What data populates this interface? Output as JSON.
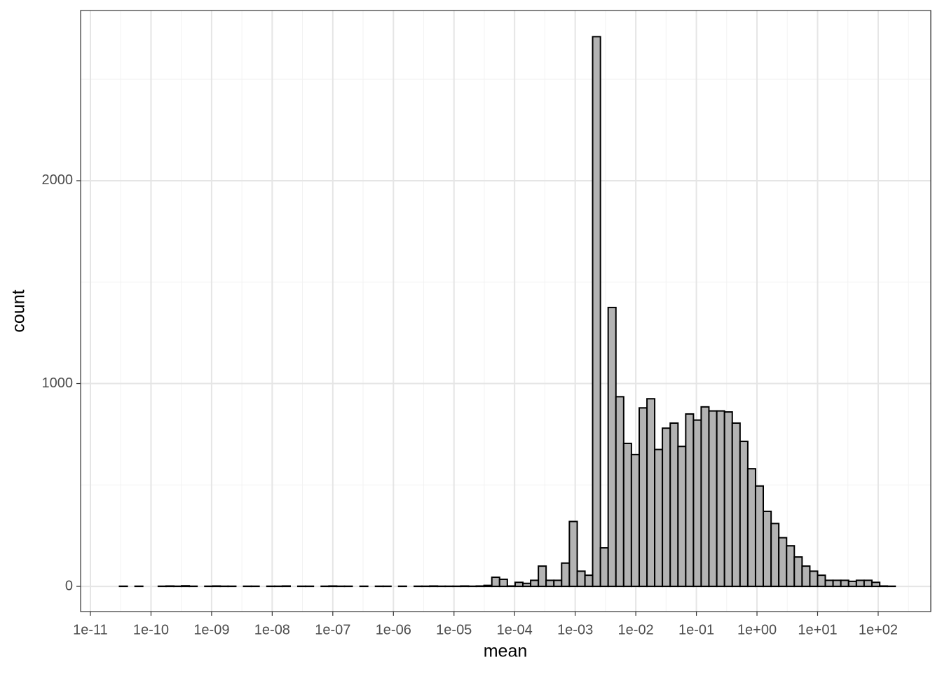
{
  "chart_data": {
    "type": "histogram",
    "x_label": "mean",
    "y_label": "count",
    "xlog": true,
    "grid": true,
    "fill": "#b3b3b3",
    "edge_color": "#000000",
    "bins": [
      3.02e-11,
      4.06e-11,
      5.45e-11,
      7.31e-11,
      9.82e-11,
      1.32e-10,
      1.77e-10,
      2.38e-10,
      3.19e-10,
      4.29e-10,
      5.75e-10,
      7.73e-10,
      1.04e-09,
      1.39e-09,
      1.87e-09,
      2.51e-09,
      3.37e-09,
      4.53e-09,
      6.08e-09,
      8.17e-09,
      1.1e-08,
      1.47e-08,
      1.98e-08,
      2.65e-08,
      3.56e-08,
      4.79e-08,
      6.43e-08,
      8.63e-08,
      1.16e-07,
      1.56e-07,
      2.09e-07,
      2.81e-07,
      3.77e-07,
      5.06e-07,
      6.79e-07,
      9.12e-07,
      1.22e-06,
      1.64e-06,
      2.21e-06,
      2.96e-06,
      3.98e-06,
      5.35e-06,
      7.18e-06,
      9.64e-06,
      1.29e-05,
      1.74e-05,
      2.33e-05,
      3.13e-05,
      4.21e-05,
      5.65e-05,
      7.59e-05,
      0.000102,
      0.000137,
      0.000184,
      0.000247,
      0.000331,
      0.000445,
      0.000597,
      0.000802,
      0.00108,
      0.00145,
      0.00194,
      0.00261,
      0.0035,
      0.0047,
      0.00631,
      0.00847,
      0.0114,
      0.0153,
      0.0205,
      0.0275,
      0.037,
      0.0497,
      0.0667,
      0.0895,
      0.12,
      0.161,
      0.217,
      0.291,
      0.391,
      0.525,
      0.705,
      0.946,
      1.27,
      1.71,
      2.29,
      3.08,
      4.13,
      5.55,
      7.45,
      10,
      13.4,
      18.0,
      24.2,
      32.5,
      43.7,
      58.6,
      78.7,
      106,
      142,
      191
    ],
    "counts": [
      1,
      0,
      1,
      0,
      0,
      1,
      2,
      1,
      3,
      1,
      0,
      1,
      2,
      1,
      1,
      0,
      1,
      1,
      0,
      1,
      1,
      2,
      0,
      1,
      1,
      0,
      1,
      2,
      1,
      1,
      0,
      1,
      0,
      1,
      1,
      0,
      1,
      0,
      1,
      1,
      2,
      1,
      1,
      1,
      2,
      1,
      2,
      5,
      45,
      35,
      2,
      20,
      15,
      30,
      100,
      30,
      30,
      115,
      320,
      75,
      55,
      2710,
      190,
      1375,
      935,
      705,
      650,
      880,
      925,
      675,
      780,
      805,
      690,
      850,
      820,
      885,
      865,
      865,
      860,
      805,
      715,
      580,
      495,
      370,
      310,
      240,
      200,
      145,
      100,
      75,
      55,
      30,
      30,
      30,
      25,
      30,
      30,
      20,
      2,
      1
    ],
    "xlim": [
      6.89e-12,
      738
    ],
    "ylim": [
      -124,
      2839
    ],
    "xticks": [
      {
        "value": 1e-11,
        "label": "1e-11"
      },
      {
        "value": 1e-10,
        "label": "1e-10"
      },
      {
        "value": 1e-09,
        "label": "1e-09"
      },
      {
        "value": 1e-08,
        "label": "1e-08"
      },
      {
        "value": 1e-07,
        "label": "1e-07"
      },
      {
        "value": 1e-06,
        "label": "1e-06"
      },
      {
        "value": 1e-05,
        "label": "1e-05"
      },
      {
        "value": 0.0001,
        "label": "1e-04"
      },
      {
        "value": 0.001,
        "label": "1e-03"
      },
      {
        "value": 0.01,
        "label": "1e-02"
      },
      {
        "value": 0.1,
        "label": "1e-01"
      },
      {
        "value": 1,
        "label": "1e+00"
      },
      {
        "value": 10,
        "label": "1e+01"
      },
      {
        "value": 100,
        "label": "1e+02"
      }
    ],
    "xminor": [
      3.16e-11,
      3.16e-10,
      3.16e-09,
      3.16e-08,
      3.16e-07,
      3.16e-06,
      3.16e-05,
      0.000316,
      0.00316,
      0.0316,
      0.316,
      3.16,
      31.6,
      316
    ],
    "yticks": [
      0,
      1000,
      2000
    ],
    "yminor": [
      500,
      1500,
      2500
    ]
  }
}
